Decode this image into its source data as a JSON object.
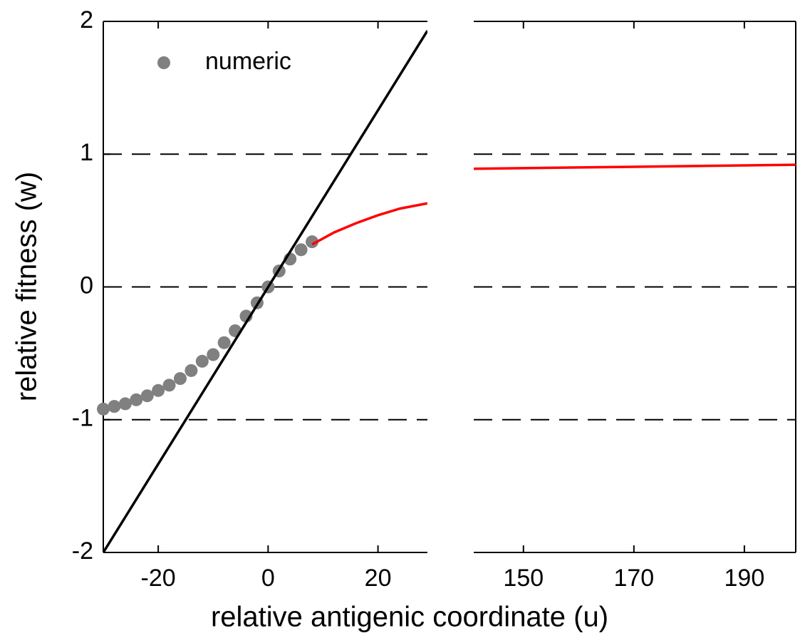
{
  "chart_data": [
    {
      "type": "line",
      "xlabel": "relative antigenic coordinate (u)",
      "ylabel": "relative fitness (w)",
      "xlim": [
        -30,
        29
      ],
      "xticks": [
        -20,
        0,
        20
      ],
      "ylim": [
        -2,
        2
      ],
      "yticks": [
        -2,
        -1,
        0,
        1,
        2
      ],
      "hlines": [
        -1,
        0,
        1
      ],
      "legend": "upper left",
      "series": [
        {
          "name": "numeric",
          "type": "scatter",
          "color": "#808080",
          "x": [
            -30,
            -28,
            -26,
            -24,
            -22,
            -20,
            -18,
            -16,
            -14,
            -12,
            -10,
            -8,
            -6,
            -4,
            -2,
            0,
            2,
            4,
            6,
            8
          ],
          "values": [
            -0.92,
            -0.9,
            -0.88,
            -0.85,
            -0.82,
            -0.78,
            -0.74,
            -0.69,
            -0.63,
            -0.56,
            -0.51,
            -0.42,
            -0.33,
            -0.22,
            -0.12,
            0.0,
            0.12,
            0.21,
            0.28,
            0.34
          ]
        },
        {
          "type": "line",
          "color": "#000000",
          "x": [
            -30,
            29
          ],
          "values": [
            -2,
            1.93
          ]
        },
        {
          "type": "line",
          "color": "#ff0000",
          "x": [
            8,
            12,
            16,
            20,
            24,
            29
          ],
          "values": [
            0.32,
            0.41,
            0.48,
            0.54,
            0.59,
            0.63
          ]
        }
      ]
    },
    {
      "type": "line",
      "xlim": [
        141,
        199.3
      ],
      "xticks": [
        150,
        170,
        190
      ],
      "ylim": [
        -2,
        2
      ],
      "hlines": [
        -1,
        0,
        1
      ],
      "series": [
        {
          "type": "line",
          "color": "#ff0000",
          "x": [
            141,
            160,
            180,
            199.3
          ],
          "values": [
            0.89,
            0.9,
            0.91,
            0.92
          ]
        }
      ]
    }
  ]
}
